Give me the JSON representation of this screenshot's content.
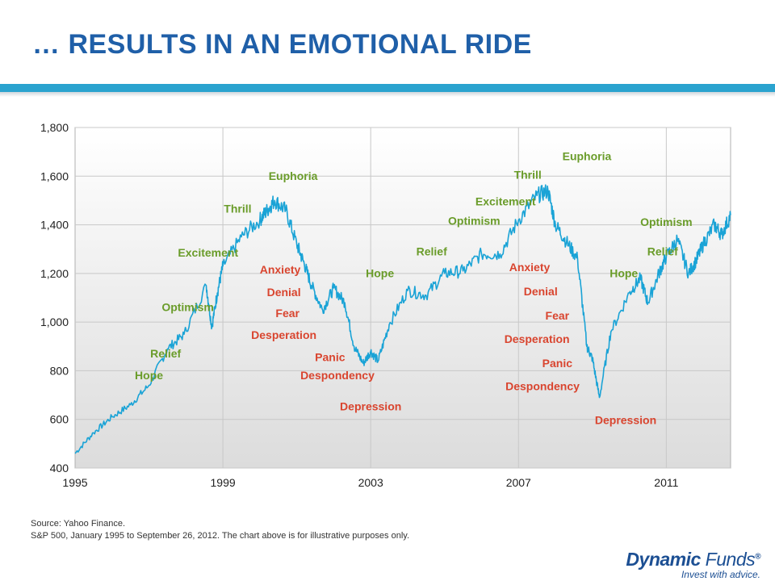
{
  "header": {
    "title": "… RESULTS IN AN EMOTIONAL RIDE"
  },
  "chart_data": {
    "type": "line",
    "title": "",
    "xlabel": "",
    "ylabel": "",
    "xlim": [
      1995,
      2012.74
    ],
    "ylim": [
      400,
      1800
    ],
    "grid": true,
    "y_ticks": [
      "400",
      "600",
      "800",
      "1,000",
      "1,200",
      "1,400",
      "1,600",
      "1,800"
    ],
    "x_ticks": [
      "1995",
      "1999",
      "2003",
      "2007",
      "2011"
    ],
    "series": [
      {
        "color": "#1aa3d6",
        "x": [
          1995.0,
          1995.5,
          1996.0,
          1996.5,
          1997.0,
          1997.5,
          1997.95,
          1998.55,
          1998.7,
          1998.85,
          1999.0,
          1999.5,
          2000.0,
          2000.2,
          2000.4,
          2000.7,
          2001.0,
          2001.2,
          2001.4,
          2001.7,
          2002.0,
          2002.3,
          2002.55,
          2002.8,
          2003.0,
          2003.2,
          2003.5,
          2004.0,
          2004.5,
          2005.0,
          2005.5,
          2006.0,
          2006.5,
          2007.0,
          2007.5,
          2007.8,
          2008.0,
          2008.3,
          2008.6,
          2008.85,
          2009.0,
          2009.19,
          2009.5,
          2010.0,
          2010.3,
          2010.5,
          2010.8,
          2011.0,
          2011.3,
          2011.6,
          2011.8,
          2012.0,
          2012.3,
          2012.5,
          2012.74
        ],
        "y": [
          460,
          545,
          610,
          660,
          740,
          890,
          950,
          1150,
          980,
          1120,
          1230,
          1350,
          1420,
          1460,
          1500,
          1460,
          1320,
          1240,
          1150,
          1050,
          1140,
          1080,
          900,
          830,
          880,
          840,
          990,
          1130,
          1110,
          1200,
          1210,
          1280,
          1280,
          1420,
          1520,
          1540,
          1400,
          1330,
          1260,
          900,
          850,
          690,
          960,
          1120,
          1180,
          1080,
          1200,
          1270,
          1340,
          1200,
          1250,
          1320,
          1400,
          1360,
          1440
        ]
      }
    ],
    "annotations_green": [
      {
        "text": "Hope",
        "x": 1997.0,
        "y": 765
      },
      {
        "text": "Relief",
        "x": 1997.45,
        "y": 855
      },
      {
        "text": "Optimism",
        "x": 1998.05,
        "y": 1045
      },
      {
        "text": "Excitement",
        "x": 1998.6,
        "y": 1270
      },
      {
        "text": "Thrill",
        "x": 1999.4,
        "y": 1450
      },
      {
        "text": "Euphoria",
        "x": 2000.9,
        "y": 1585
      },
      {
        "text": "Hope",
        "x": 2003.25,
        "y": 1185
      },
      {
        "text": "Relief",
        "x": 2004.65,
        "y": 1275
      },
      {
        "text": "Optimism",
        "x": 2005.8,
        "y": 1400
      },
      {
        "text": "Excitement",
        "x": 2006.65,
        "y": 1480
      },
      {
        "text": "Thrill",
        "x": 2007.25,
        "y": 1590
      },
      {
        "text": "Euphoria",
        "x": 2008.85,
        "y": 1665
      },
      {
        "text": "Hope",
        "x": 2009.85,
        "y": 1185
      },
      {
        "text": "Relief",
        "x": 2010.9,
        "y": 1275
      },
      {
        "text": "Optimism",
        "x": 2011.0,
        "y": 1395
      }
    ],
    "annotations_red": [
      {
        "text": "Anxiety",
        "x": 2000.55,
        "y": 1200
      },
      {
        "text": "Denial",
        "x": 2000.65,
        "y": 1107
      },
      {
        "text": "Fear",
        "x": 2000.75,
        "y": 1020
      },
      {
        "text": "Desperation",
        "x": 2000.65,
        "y": 930
      },
      {
        "text": "Panic",
        "x": 2001.9,
        "y": 840
      },
      {
        "text": "Despondency",
        "x": 2002.1,
        "y": 765
      },
      {
        "text": "Depression",
        "x": 2003.0,
        "y": 638
      },
      {
        "text": "Anxiety",
        "x": 2007.3,
        "y": 1210
      },
      {
        "text": "Denial",
        "x": 2007.6,
        "y": 1110
      },
      {
        "text": "Fear",
        "x": 2008.05,
        "y": 1010
      },
      {
        "text": "Desperation",
        "x": 2007.5,
        "y": 915
      },
      {
        "text": "Panic",
        "x": 2008.05,
        "y": 815
      },
      {
        "text": "Despondency",
        "x": 2007.65,
        "y": 720
      },
      {
        "text": "Depression",
        "x": 2009.9,
        "y": 580
      }
    ],
    "annotation_colors": {
      "green": "#6a9c2a",
      "red": "#d9452f"
    }
  },
  "footer": {
    "source_line1": "Source: Yahoo Finance.",
    "source_line2": "S&P 500, January 1995 to September 26, 2012. The chart above is for illustrative purposes only."
  },
  "logo": {
    "name_bold": "Dynamic",
    "name_light": " Funds",
    "reg": "®",
    "tagline": "Invest with advice."
  }
}
